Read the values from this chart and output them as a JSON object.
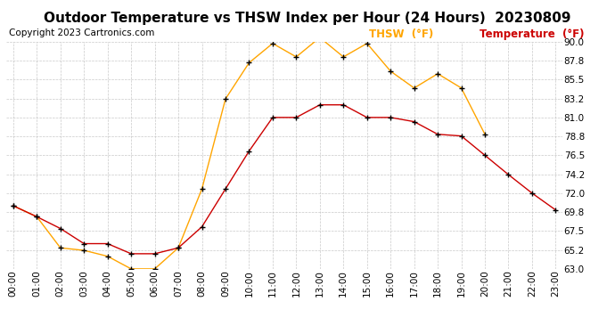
{
  "title": "Outdoor Temperature vs THSW Index per Hour (24 Hours)  20230809",
  "copyright": "Copyright 2023 Cartronics.com",
  "hours": [
    "00:00",
    "01:00",
    "02:00",
    "03:00",
    "04:00",
    "05:00",
    "06:00",
    "07:00",
    "08:00",
    "09:00",
    "10:00",
    "11:00",
    "12:00",
    "13:00",
    "14:00",
    "15:00",
    "16:00",
    "17:00",
    "18:00",
    "19:00",
    "20:00",
    "21:00",
    "22:00",
    "23:00"
  ],
  "thsw": [
    70.5,
    69.2,
    65.5,
    65.2,
    64.5,
    63.0,
    63.0,
    65.5,
    72.5,
    83.2,
    87.5,
    89.8,
    88.2,
    90.5,
    88.2,
    89.8,
    86.5,
    84.5,
    86.2,
    84.5,
    79.0,
    null,
    null,
    null
  ],
  "temp": [
    70.5,
    69.2,
    67.8,
    66.0,
    66.0,
    64.8,
    64.8,
    65.5,
    68.0,
    72.5,
    77.0,
    81.0,
    81.0,
    82.5,
    82.5,
    81.0,
    81.0,
    80.5,
    79.0,
    78.8,
    76.5,
    74.2,
    72.0,
    70.0
  ],
  "thsw_color": "#FFA500",
  "temp_color": "#CC0000",
  "marker_color": "#000000",
  "background_color": "#ffffff",
  "grid_color": "#bbbbbb",
  "title_color": "#000000",
  "copyright_color": "#000000",
  "legend_thsw_color": "#FFA500",
  "legend_temp_color": "#CC0000",
  "ylim_min": 63.0,
  "ylim_max": 90.0,
  "yticks": [
    63.0,
    65.2,
    67.5,
    69.8,
    72.0,
    74.2,
    76.5,
    78.8,
    81.0,
    83.2,
    85.5,
    87.8,
    90.0
  ],
  "title_fontsize": 11,
  "copyright_fontsize": 7.5,
  "legend_fontsize": 8.5,
  "tick_fontsize": 7.5
}
